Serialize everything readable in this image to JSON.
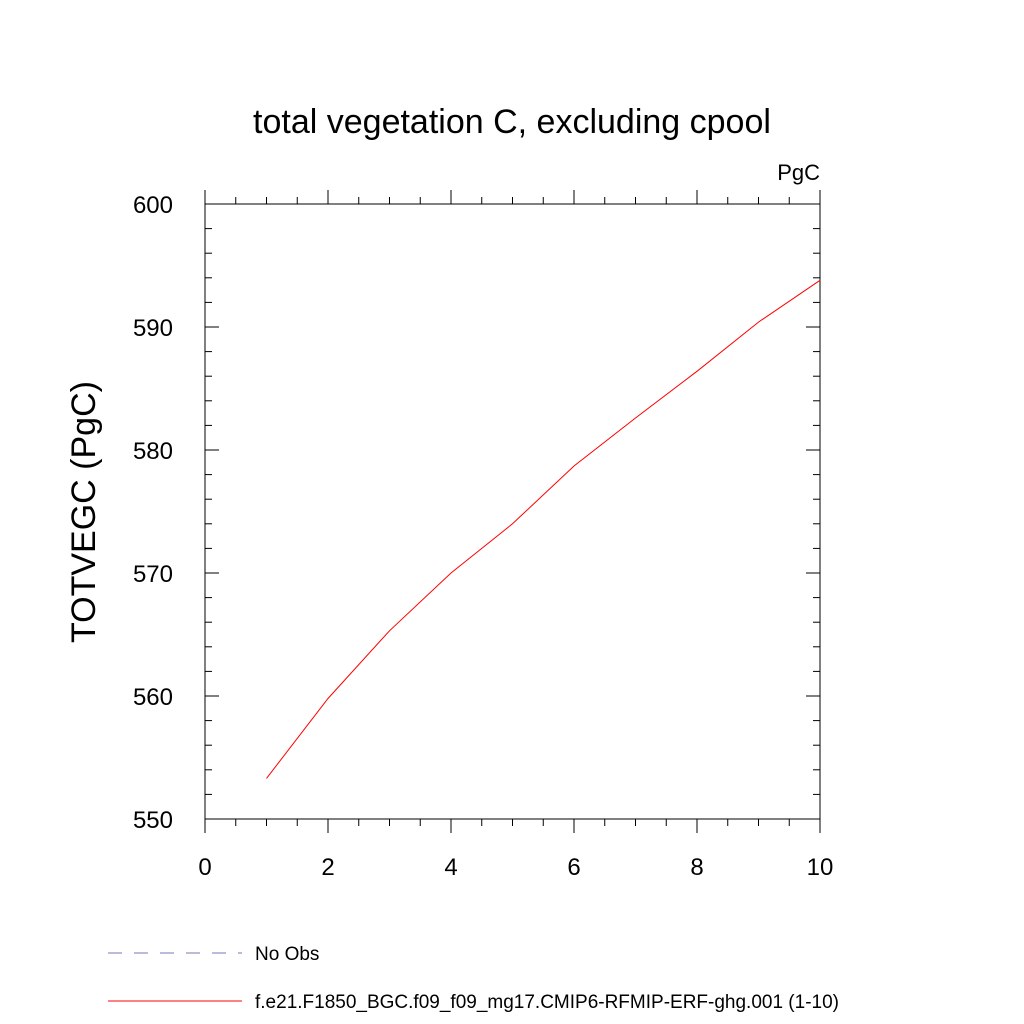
{
  "chart_data": {
    "type": "line",
    "title": "total vegetation C, excluding cpool",
    "units_label": "PgC",
    "xlabel": "",
    "ylabel": "TOTVEGC  (PgC)",
    "xlim": [
      0,
      10
    ],
    "ylim": [
      550,
      600
    ],
    "xticks": [
      0,
      2,
      4,
      6,
      8,
      10
    ],
    "yticks": [
      550,
      560,
      570,
      580,
      590,
      600
    ],
    "grid": false,
    "series": [
      {
        "name": "f.e21.F1850_BGC.f09_f09_mg17.CMIP6-RFMIP-ERF-ghg.001 (1-10)",
        "color": "#ff0000",
        "style": "solid",
        "x": [
          1,
          2,
          3,
          4,
          5,
          6,
          7,
          8,
          9,
          10
        ],
        "y": [
          553.3,
          559.8,
          565.3,
          570.0,
          574.0,
          578.7,
          582.6,
          586.4,
          590.4,
          593.8
        ]
      }
    ],
    "legend": [
      {
        "label": "No Obs",
        "color": "#7777bb",
        "style": "dashed"
      },
      {
        "label": "f.e21.F1850_BGC.f09_f09_mg17.CMIP6-RFMIP-ERF-ghg.001 (1-10)",
        "color": "#ff0000",
        "style": "solid"
      }
    ],
    "legend_placement": "bottom-left"
  }
}
